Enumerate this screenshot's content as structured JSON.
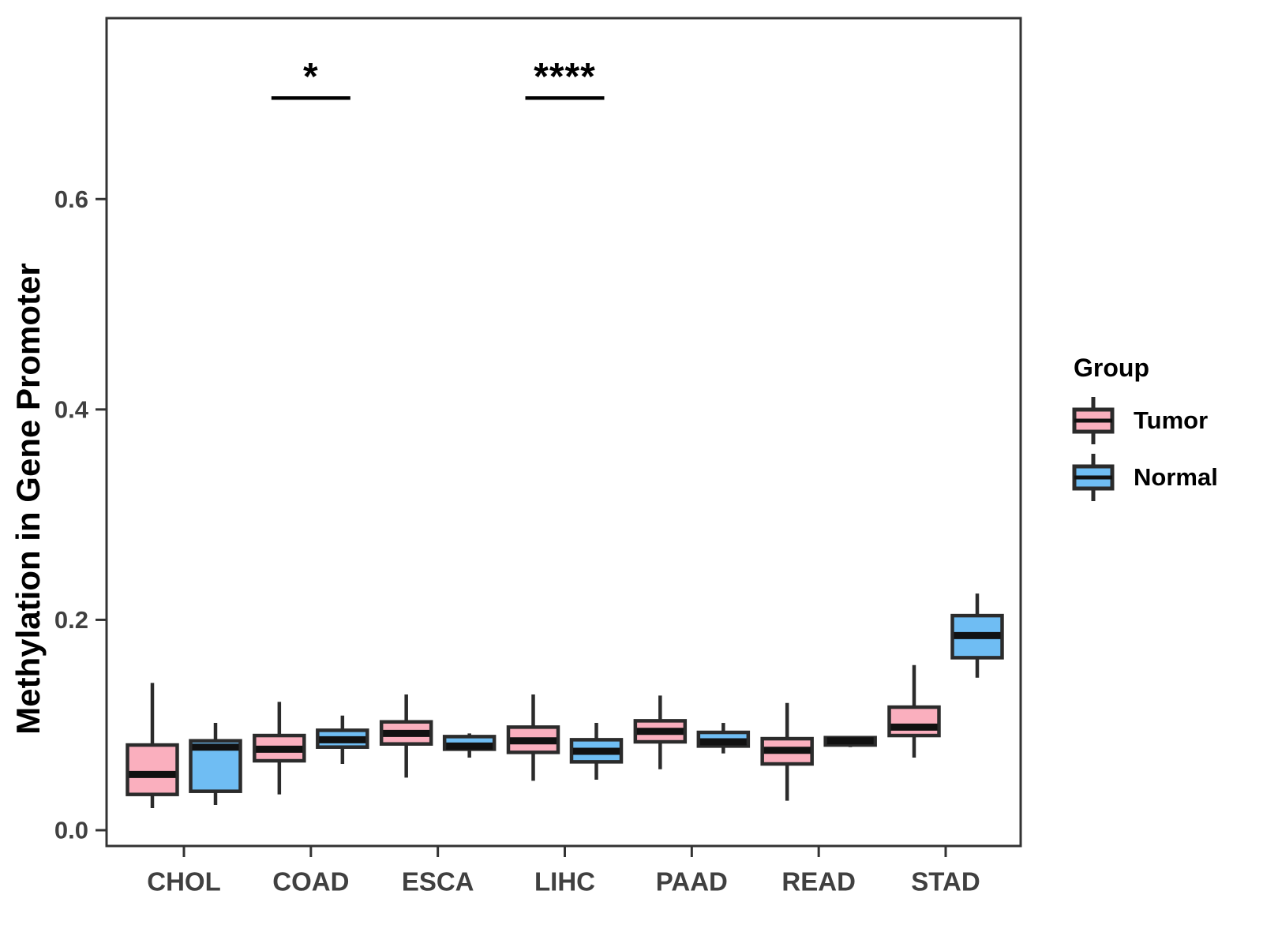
{
  "chart_data": {
    "type": "boxplot",
    "title": "",
    "xlabel": "",
    "ylabel": "Methylation in Gene Promoter",
    "ylim": [
      -0.015,
      0.772
    ],
    "y_ticks": [
      0.0,
      0.2,
      0.4,
      0.6
    ],
    "y_tick_labels": [
      "0.0",
      "0.2",
      "0.4",
      "0.6"
    ],
    "grid": false,
    "categories": [
      "CHOL",
      "COAD",
      "ESCA",
      "LIHC",
      "PAAD",
      "READ",
      "STAD"
    ],
    "series": [
      {
        "name": "Tumor",
        "fill": "#FAAFBE",
        "boxes": [
          {
            "category": "CHOL",
            "whisker_low": 0.021,
            "q1": 0.034,
            "median": 0.053,
            "q3": 0.081,
            "whisker_high": 0.14
          },
          {
            "category": "COAD",
            "whisker_low": 0.034,
            "q1": 0.066,
            "median": 0.077,
            "q3": 0.09,
            "whisker_high": 0.122
          },
          {
            "category": "ESCA",
            "whisker_low": 0.05,
            "q1": 0.082,
            "median": 0.092,
            "q3": 0.103,
            "whisker_high": 0.129
          },
          {
            "category": "LIHC",
            "whisker_low": 0.047,
            "q1": 0.074,
            "median": 0.085,
            "q3": 0.098,
            "whisker_high": 0.129
          },
          {
            "category": "PAAD",
            "whisker_low": 0.058,
            "q1": 0.084,
            "median": 0.094,
            "q3": 0.104,
            "whisker_high": 0.128
          },
          {
            "category": "READ",
            "whisker_low": 0.028,
            "q1": 0.063,
            "median": 0.076,
            "q3": 0.087,
            "whisker_high": 0.121
          },
          {
            "category": "STAD",
            "whisker_low": 0.069,
            "q1": 0.09,
            "median": 0.098,
            "q3": 0.117,
            "whisker_high": 0.157
          }
        ]
      },
      {
        "name": "Normal",
        "fill": "#6FBDF3",
        "boxes": [
          {
            "category": "CHOL",
            "whisker_low": 0.024,
            "q1": 0.037,
            "median": 0.079,
            "q3": 0.085,
            "whisker_high": 0.102
          },
          {
            "category": "COAD",
            "whisker_low": 0.063,
            "q1": 0.079,
            "median": 0.086,
            "q3": 0.095,
            "whisker_high": 0.109
          },
          {
            "category": "ESCA",
            "whisker_low": 0.069,
            "q1": 0.077,
            "median": 0.08,
            "q3": 0.089,
            "whisker_high": 0.092
          },
          {
            "category": "LIHC",
            "whisker_low": 0.048,
            "q1": 0.065,
            "median": 0.075,
            "q3": 0.086,
            "whisker_high": 0.102
          },
          {
            "category": "PAAD",
            "whisker_low": 0.073,
            "q1": 0.08,
            "median": 0.084,
            "q3": 0.093,
            "whisker_high": 0.102
          },
          {
            "category": "READ",
            "whisker_low": 0.079,
            "q1": 0.081,
            "median": 0.085,
            "q3": 0.088,
            "whisker_high": 0.089
          },
          {
            "category": "STAD",
            "whisker_low": 0.145,
            "q1": 0.164,
            "median": 0.185,
            "q3": 0.204,
            "whisker_high": 0.225
          }
        ]
      }
    ],
    "annotations": [
      {
        "category": "COAD",
        "label": "*",
        "bar_value": 0.696,
        "label_value": 0.722
      },
      {
        "category": "LIHC",
        "label": "****",
        "bar_value": 0.696,
        "label_value": 0.722
      }
    ],
    "legend": {
      "title": "Group",
      "position": "right",
      "entries": [
        {
          "label": "Tumor",
          "fill": "#FAAFBE"
        },
        {
          "label": "Normal",
          "fill": "#6FBDF3"
        }
      ]
    },
    "colors": {
      "box_border": "#2B2B2B",
      "median": "#111111",
      "panel_border": "#333333",
      "tick_label": "#404040",
      "axis_title": "#000000",
      "annotation": "#000000",
      "background": "#FFFFFF"
    }
  }
}
